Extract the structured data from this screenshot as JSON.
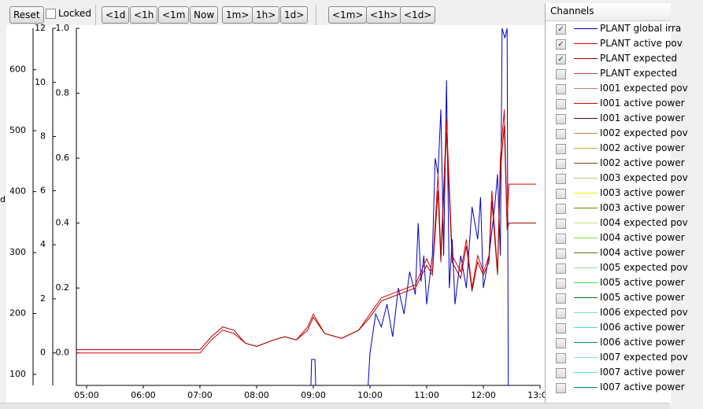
{
  "toolbar": {
    "buttons": [
      "Reset",
      "<1d",
      "<1h",
      "<1m",
      "Now",
      "1m>",
      "1h>",
      "1d>",
      "<1m>",
      "<1h>",
      "<1d>"
    ],
    "locked_label": "Locked"
  },
  "chart_data": {
    "type": "line",
    "axis_label": "d",
    "xlim": [
      4.82,
      13.0
    ],
    "xticks": [
      {
        "value": 5,
        "label": "05:00"
      },
      {
        "value": 6,
        "label": "06:00"
      },
      {
        "value": 7,
        "label": "07:00"
      },
      {
        "value": 8,
        "label": "08:00"
      },
      {
        "value": 9,
        "label": "09:00"
      },
      {
        "value": 10,
        "label": "10:00"
      },
      {
        "value": 11,
        "label": "11:00"
      },
      {
        "value": 12,
        "label": "12:00"
      },
      {
        "value": 13,
        "label": "13:00"
      }
    ],
    "ylim": [
      -0.1,
      1.0
    ],
    "yticks": [
      {
        "value": 0,
        "label": "0.0"
      },
      0.2,
      0.4,
      0.6,
      0.8,
      {
        "value": 1,
        "label": "1.0"
      }
    ],
    "y2lim": [
      -1.2,
      12
    ],
    "y2ticks": [
      0,
      2,
      4,
      6,
      8,
      10,
      12
    ],
    "y3lim": [
      82,
      668
    ],
    "y3ticks": [
      100,
      200,
      300,
      400,
      500,
      600
    ],
    "series": [
      {
        "color": "#0000c0",
        "x": [
          8.95,
          8.97,
          9.03,
          9.05,
          9.5,
          9.95,
          10.0,
          10.1,
          10.2,
          10.3,
          10.4,
          10.5,
          10.6,
          10.7,
          10.8,
          10.85,
          10.9,
          10.95,
          11.0,
          11.1,
          11.15,
          11.2,
          11.25,
          11.3,
          11.35,
          11.4,
          11.45,
          11.5,
          11.6,
          11.7,
          11.8,
          11.9,
          11.95,
          12.0,
          12.1,
          12.2,
          12.25,
          12.3,
          12.33,
          12.38,
          12.42,
          12.44
        ],
        "values": [
          -0.15,
          -0.02,
          -0.02,
          -0.15,
          null,
          -0.15,
          0.0,
          0.12,
          0.08,
          0.15,
          0.05,
          0.2,
          0.12,
          0.25,
          0.18,
          0.4,
          0.22,
          0.3,
          0.15,
          0.3,
          0.6,
          0.55,
          0.75,
          0.3,
          0.84,
          0.2,
          0.35,
          0.15,
          0.3,
          0.2,
          0.45,
          0.35,
          0.48,
          0.2,
          0.3,
          0.45,
          0.55,
          0.3,
          1.0,
          0.97,
          1.0,
          -0.15
        ]
      },
      {
        "color": "#e00000",
        "x": [
          4.82,
          7.0,
          7.2,
          7.4,
          7.6,
          7.8,
          8.0,
          8.3,
          8.5,
          8.7,
          8.9,
          9.0,
          9.2,
          9.5,
          9.8,
          10.0,
          10.2,
          10.5,
          10.8,
          11.0,
          11.1,
          11.2,
          11.25,
          11.35,
          11.45,
          11.6,
          11.7,
          11.8,
          11.9,
          12.0,
          12.1,
          12.15,
          12.25,
          12.3,
          12.37,
          12.42,
          12.45,
          12.93
        ],
        "values": [
          0.0,
          0.0,
          0.04,
          0.07,
          0.06,
          0.03,
          0.02,
          0.04,
          0.05,
          0.04,
          0.08,
          0.12,
          0.06,
          0.045,
          0.07,
          0.12,
          0.17,
          0.19,
          0.21,
          0.29,
          0.25,
          0.55,
          0.3,
          0.72,
          0.3,
          0.25,
          0.35,
          0.2,
          0.3,
          0.25,
          0.3,
          0.5,
          0.25,
          0.6,
          0.75,
          0.4,
          0.52,
          0.52
        ]
      },
      {
        "color": "#a00000",
        "x": [
          4.82,
          7.0,
          7.2,
          7.4,
          7.6,
          7.8,
          8.0,
          8.3,
          8.5,
          8.7,
          8.9,
          9.0,
          9.2,
          9.5,
          9.8,
          10.0,
          10.2,
          10.5,
          10.8,
          11.0,
          11.1,
          11.2,
          11.25,
          11.35,
          11.45,
          11.6,
          11.7,
          11.8,
          11.9,
          12.0,
          12.1,
          12.15,
          12.25,
          12.3,
          12.37,
          12.42,
          12.45,
          12.93
        ],
        "values": [
          0.01,
          0.01,
          0.05,
          0.08,
          0.07,
          0.03,
          0.02,
          0.04,
          0.05,
          0.04,
          0.07,
          0.11,
          0.06,
          0.045,
          0.07,
          0.11,
          0.16,
          0.18,
          0.2,
          0.27,
          0.24,
          0.5,
          0.28,
          0.68,
          0.28,
          0.23,
          0.33,
          0.19,
          0.28,
          0.24,
          0.28,
          0.47,
          0.24,
          0.56,
          0.7,
          0.38,
          0.4,
          0.4
        ]
      }
    ]
  },
  "channels": {
    "title": "Channels",
    "items": [
      {
        "label": "PLANT global irra",
        "color": "#0000c0",
        "checked": true
      },
      {
        "label": "PLANT active pov",
        "color": "#e00000",
        "checked": true
      },
      {
        "label": "PLANT expected",
        "color": "#a00000",
        "checked": true
      },
      {
        "label": "PLANT expected",
        "color": "#c04040",
        "checked": false
      },
      {
        "label": "I001 expected pov",
        "color": "#c08080",
        "checked": false
      },
      {
        "label": "I001 active power",
        "color": "#e00000",
        "checked": false
      },
      {
        "label": "I001 active power",
        "color": "#600020",
        "checked": false
      },
      {
        "label": "I002 expected pov",
        "color": "#c08040",
        "checked": false
      },
      {
        "label": "I002 active power",
        "color": "#e0a040",
        "checked": false
      },
      {
        "label": "I002 active power",
        "color": "#804000",
        "checked": false
      },
      {
        "label": "I003 expected pov",
        "color": "#c0c080",
        "checked": false
      },
      {
        "label": "I003 active power",
        "color": "#f0f000",
        "checked": false
      },
      {
        "label": "I003 active power",
        "color": "#808000",
        "checked": false
      },
      {
        "label": "I004 expected pov",
        "color": "#c0e080",
        "checked": false
      },
      {
        "label": "I004 active power",
        "color": "#80e040",
        "checked": false
      },
      {
        "label": "I004 active power",
        "color": "#408000",
        "checked": false
      },
      {
        "label": "I005 expected pov",
        "color": "#a0e0a0",
        "checked": false
      },
      {
        "label": "I005 active power",
        "color": "#40e040",
        "checked": false
      },
      {
        "label": "I005 active power",
        "color": "#008000",
        "checked": false
      },
      {
        "label": "I006 expected pov",
        "color": "#80e0c0",
        "checked": false
      },
      {
        "label": "I006 active power",
        "color": "#40e0c0",
        "checked": false
      },
      {
        "label": "I006 active power",
        "color": "#008080",
        "checked": false
      },
      {
        "label": "I007 expected pov",
        "color": "#80e0e0",
        "checked": false
      },
      {
        "label": "I007 active power",
        "color": "#40e0f0",
        "checked": false
      },
      {
        "label": "I007 active power",
        "color": "#008090",
        "checked": false
      }
    ]
  }
}
